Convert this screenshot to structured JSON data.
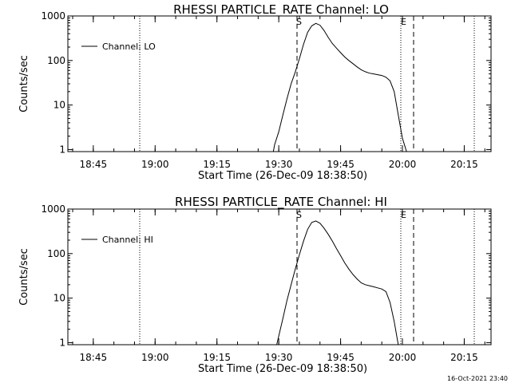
{
  "footer_timestamp": "16-Oct-2021 23:40",
  "chart_data": [
    {
      "type": "line",
      "title": "RHESSI PARTICLE_RATE Channel: LO",
      "xlabel": "Start Time (26-Dec-09 18:38:50)",
      "ylabel": "Counts/sec",
      "y_scale": "log",
      "ylim": [
        0.9,
        1000
      ],
      "xlim": [
        "18:38:50",
        "20:21:30"
      ],
      "x_tick_labels": [
        "18:45",
        "19:00",
        "19:15",
        "19:30",
        "19:45",
        "20:00",
        "20:15"
      ],
      "y_tick_labels": [
        "1",
        "10",
        "100",
        "1000"
      ],
      "legend": {
        "placement": "top-left",
        "entries": [
          "Channel: LO"
        ]
      },
      "markers": {
        "start_label": "S",
        "end_label": "E"
      },
      "grid": false,
      "series": [
        {
          "name": "Channel: LO",
          "x": [
            "19:28:40",
            "19:29:00",
            "19:30:00",
            "19:31:00",
            "19:32:00",
            "19:33:00",
            "19:34:00",
            "19:35:00",
            "19:36:00",
            "19:37:00",
            "19:38:00",
            "19:39:00",
            "19:40:00",
            "19:41:00",
            "19:42:00",
            "19:43:00",
            "19:44:00",
            "19:45:00",
            "19:46:00",
            "19:47:00",
            "19:48:00",
            "19:49:00",
            "19:50:00",
            "19:51:00",
            "19:52:00",
            "19:53:00",
            "19:54:00",
            "19:55:00",
            "19:56:00",
            "19:57:00",
            "19:58:00",
            "19:59:00",
            "20:00:00",
            "20:01:00"
          ],
          "values": [
            0.9,
            1.3,
            2.5,
            6,
            14,
            30,
            55,
            110,
            230,
            430,
            600,
            680,
            620,
            470,
            330,
            240,
            190,
            150,
            120,
            100,
            85,
            72,
            62,
            56,
            52,
            50,
            48,
            46,
            42,
            35,
            20,
            6,
            1.8,
            0.9
          ]
        }
      ]
    },
    {
      "type": "line",
      "title": "RHESSI PARTICLE_RATE Channel: HI",
      "xlabel": "Start Time (26-Dec-09 18:38:50)",
      "ylabel": "Counts/sec",
      "y_scale": "log",
      "ylim": [
        0.9,
        1000
      ],
      "xlim": [
        "18:38:50",
        "20:21:30"
      ],
      "x_tick_labels": [
        "18:45",
        "19:00",
        "19:15",
        "19:30",
        "19:45",
        "20:00",
        "20:15"
      ],
      "y_tick_labels": [
        "1",
        "10",
        "100",
        "1000"
      ],
      "legend": {
        "placement": "top-left",
        "entries": [
          "Channel: HI"
        ]
      },
      "markers": {
        "start_label": "S",
        "end_label": "E"
      },
      "grid": false,
      "series": [
        {
          "name": "Channel: HI",
          "x": [
            "19:29:30",
            "19:30:00",
            "19:31:00",
            "19:32:00",
            "19:33:00",
            "19:34:00",
            "19:35:00",
            "19:36:00",
            "19:37:00",
            "19:38:00",
            "19:39:00",
            "19:40:00",
            "19:41:00",
            "19:42:00",
            "19:43:00",
            "19:44:00",
            "19:45:00",
            "19:46:00",
            "19:47:00",
            "19:48:00",
            "19:49:00",
            "19:50:00",
            "19:51:00",
            "19:52:00",
            "19:53:00",
            "19:54:00",
            "19:55:00",
            "19:56:00",
            "19:57:00",
            "19:58:00",
            "19:59:00"
          ],
          "values": [
            0.9,
            1.4,
            3.5,
            9,
            20,
            45,
            95,
            190,
            350,
            500,
            540,
            480,
            370,
            270,
            190,
            130,
            90,
            62,
            45,
            34,
            27,
            22,
            20,
            19,
            18,
            17,
            16,
            14,
            8,
            3,
            0.9
          ]
        }
      ]
    }
  ]
}
